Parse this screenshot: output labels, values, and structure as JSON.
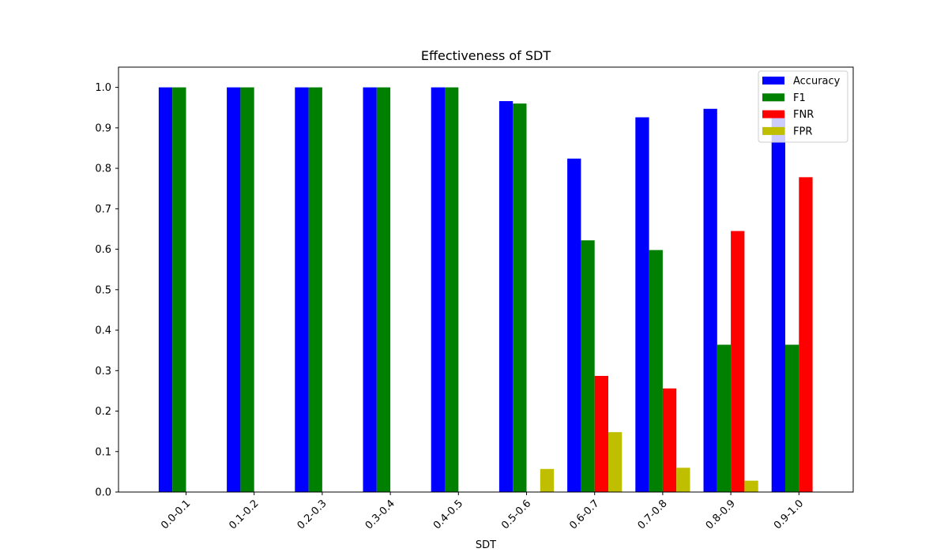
{
  "chart_data": {
    "type": "bar",
    "title": "Effectiveness of SDT",
    "xlabel": "SDT",
    "ylabel": "",
    "ylim": [
      0,
      1.05
    ],
    "yticks": [
      0.0,
      0.1,
      0.2,
      0.3,
      0.4,
      0.5,
      0.6,
      0.7,
      0.8,
      0.9,
      1.0
    ],
    "ytick_labels": [
      "0.0",
      "0.1",
      "0.2",
      "0.3",
      "0.4",
      "0.5",
      "0.6",
      "0.7",
      "0.8",
      "0.9",
      "1.0"
    ],
    "categories": [
      "0.0-0.1",
      "0.1-0.2",
      "0.2-0.3",
      "0.3-0.4",
      "0.4-0.5",
      "0.5-0.6",
      "0.6-0.7",
      "0.7-0.8",
      "0.8-0.9",
      "0.9-1.0"
    ],
    "series": [
      {
        "name": "Accuracy",
        "color": "#0000ff",
        "values": [
          1.0,
          1.0,
          1.0,
          1.0,
          1.0,
          0.966,
          0.824,
          0.926,
          0.947,
          0.94
        ]
      },
      {
        "name": "F1",
        "color": "#008000",
        "values": [
          1.0,
          1.0,
          1.0,
          1.0,
          1.0,
          0.96,
          0.622,
          0.598,
          0.364,
          0.364
        ]
      },
      {
        "name": "FNR",
        "color": "#ff0000",
        "values": [
          0,
          0,
          0,
          0,
          0,
          0,
          0.287,
          0.256,
          0.645,
          0.778
        ]
      },
      {
        "name": "FPR",
        "color": "#bfbf00",
        "values": [
          0,
          0,
          0,
          0,
          0,
          0.057,
          0.148,
          0.06,
          0.028,
          0
        ]
      }
    ],
    "grid": false,
    "legend_position": "top-right"
  }
}
